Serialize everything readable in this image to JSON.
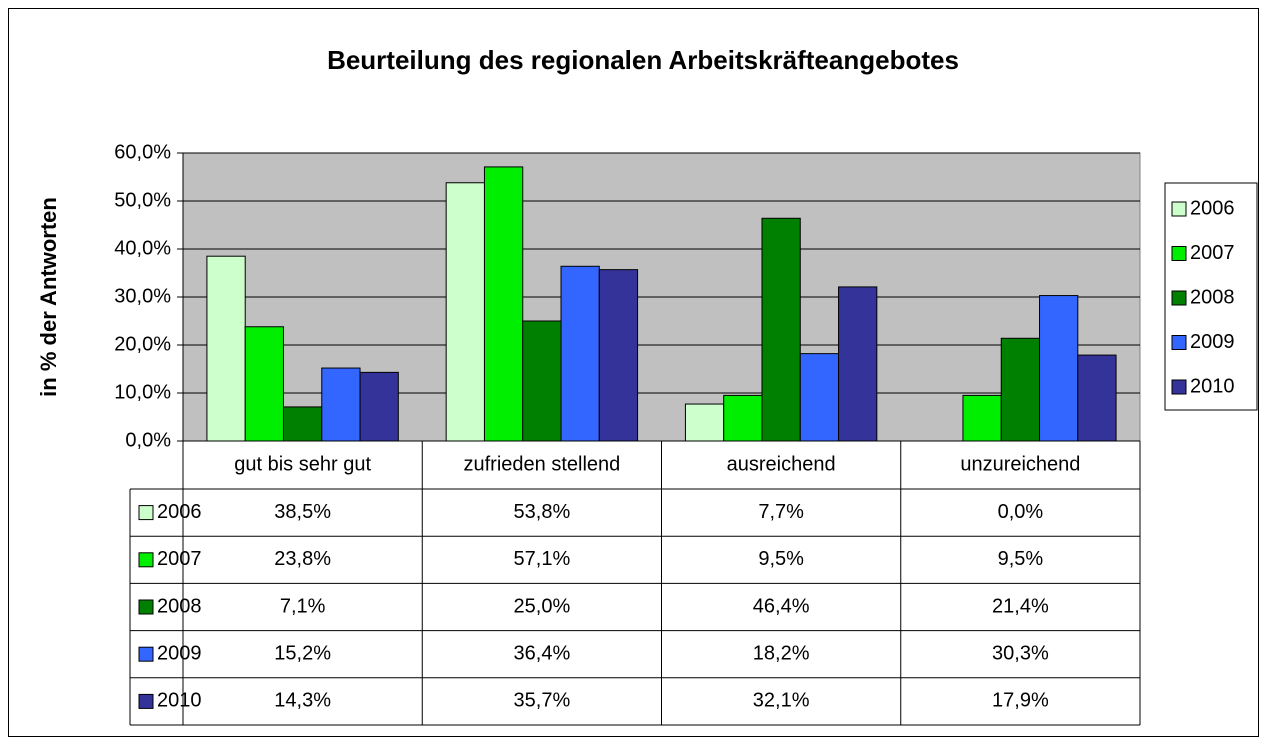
{
  "chart_data": {
    "type": "bar",
    "title": "Beurteilung des regionalen Arbeitskräfteangebotes",
    "y_label": "in % der Antworten",
    "categories": [
      "gut bis sehr gut",
      "zufrieden stellend",
      "ausreichend",
      "unzureichend"
    ],
    "series": [
      {
        "name": "2006",
        "color": "#ccffcc",
        "values": [
          38.5,
          53.8,
          7.7,
          0.0
        ],
        "value_labels": [
          "38,5%",
          "53,8%",
          "7,7%",
          "0,0%"
        ]
      },
      {
        "name": "2007",
        "color": "#00ee00",
        "values": [
          23.8,
          57.1,
          9.5,
          9.5
        ],
        "value_labels": [
          "23,8%",
          "57,1%",
          "9,5%",
          "9,5%"
        ]
      },
      {
        "name": "2008",
        "color": "#008000",
        "values": [
          7.1,
          25.0,
          46.4,
          21.4
        ],
        "value_labels": [
          "7,1%",
          "25,0%",
          "46,4%",
          "21,4%"
        ]
      },
      {
        "name": "2009",
        "color": "#3366ff",
        "values": [
          15.2,
          36.4,
          18.2,
          30.3
        ],
        "value_labels": [
          "15,2%",
          "36,4%",
          "18,2%",
          "30,3%"
        ]
      },
      {
        "name": "2010",
        "color": "#333399",
        "values": [
          14.3,
          35.7,
          32.1,
          17.9
        ],
        "value_labels": [
          "14,3%",
          "35,7%",
          "32,1%",
          "17,9%"
        ]
      }
    ],
    "ylim": [
      0,
      60
    ],
    "yticks": [
      {
        "value": 0,
        "label": "0,0%"
      },
      {
        "value": 10,
        "label": "10,0%"
      },
      {
        "value": 20,
        "label": "20,0%"
      },
      {
        "value": 30,
        "label": "30,0%"
      },
      {
        "value": 40,
        "label": "40,0%"
      },
      {
        "value": 50,
        "label": "50,0%"
      },
      {
        "value": 60,
        "label": "60,0%"
      }
    ],
    "grid": true,
    "legend": "right",
    "plot_background": "#c0c0c0"
  }
}
